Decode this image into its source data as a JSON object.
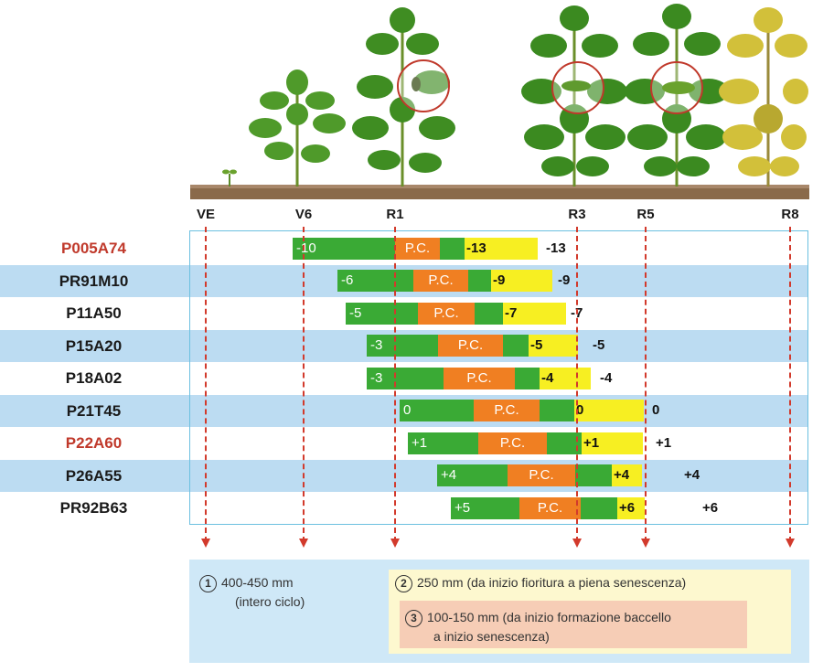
{
  "stages": [
    "VE",
    "V6",
    "R1",
    "R3",
    "R5",
    "R8"
  ],
  "pc_label": "P.C.",
  "rows": [
    {
      "name": "P005A74",
      "highlight": true,
      "start_label": "-10",
      "yellow_label": "-13",
      "end_label": "-13"
    },
    {
      "name": "PR91M10",
      "highlight": false,
      "start_label": "-6",
      "yellow_label": "-9",
      "end_label": "-9"
    },
    {
      "name": "P11A50",
      "highlight": false,
      "start_label": "-5",
      "yellow_label": "-7",
      "end_label": "-7"
    },
    {
      "name": "P15A20",
      "highlight": false,
      "start_label": "-3",
      "yellow_label": "-5",
      "end_label": "-5"
    },
    {
      "name": "P18A02",
      "highlight": false,
      "start_label": "-3",
      "yellow_label": "-4",
      "end_label": "-4"
    },
    {
      "name": "P21T45",
      "highlight": false,
      "start_label": "0",
      "yellow_label": "0",
      "end_label": "0"
    },
    {
      "name": "P22A60",
      "highlight": true,
      "start_label": "+1",
      "yellow_label": "+1",
      "end_label": "+1"
    },
    {
      "name": "P26A55",
      "highlight": false,
      "start_label": "+4",
      "yellow_label": "+4",
      "end_label": "+4"
    },
    {
      "name": "PR92B63",
      "highlight": false,
      "start_label": "+5",
      "yellow_label": "+6",
      "end_label": "+6"
    }
  ],
  "legend": {
    "item1": {
      "num": "1",
      "line1": "400-450 mm",
      "line2": "(intero ciclo)"
    },
    "item2": {
      "num": "2",
      "text": "250 mm (da inizio fioritura a piena senescenza)"
    },
    "item3": {
      "num": "3",
      "line1": "100-150 mm (da inizio formazione baccello",
      "line2": "a inizio senescenza)"
    }
  },
  "colors": {
    "vegetative": "#3aaa35",
    "critical_period": "#f07f22",
    "ripening": "#f7ef22",
    "highlight_name": "#c0392b",
    "row_band": "#bcdcf2",
    "stage_line": "#d23a2c"
  }
}
